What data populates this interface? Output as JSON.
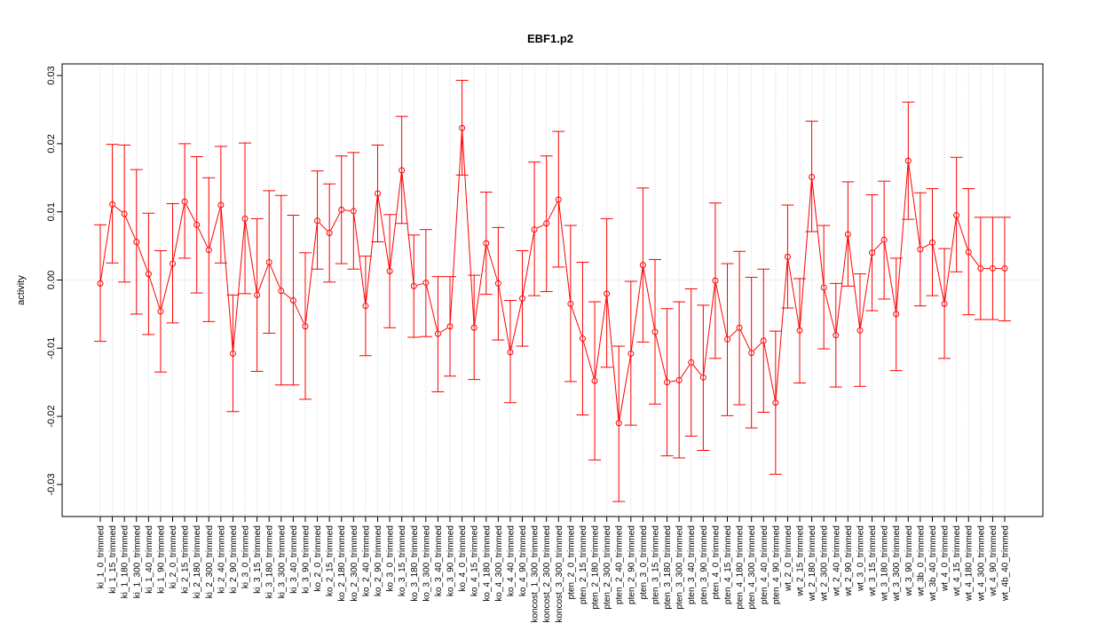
{
  "chart_data": {
    "type": "line",
    "title": "EBF1.p2",
    "xlabel": "",
    "ylabel": "activity",
    "ylim": [
      -0.035,
      0.0315
    ],
    "yticks": [
      -0.03,
      -0.02,
      -0.01,
      0.0,
      0.01,
      0.02,
      0.03
    ],
    "ytick_labels": [
      "-0.03",
      "-0.02",
      "-0.01",
      "0.00",
      "0.01",
      "0.02",
      "0.03"
    ],
    "grid": true,
    "color": "#ff0000",
    "categories": [
      "ki_1_0_trimmed",
      "ki_1_15_trimmed",
      "ki_1_180_trimmed",
      "ki_1_300_trimmed",
      "ki_1_40_trimmed",
      "ki_1_90_trimmed",
      "ki_2_0_trimmed",
      "ki_2_15_trimmed",
      "ki_2_180_trimmed",
      "ki_2_300_trimmed",
      "ki_2_40_trimmed",
      "ki_2_90_trimmed",
      "ki_3_0_trimmed",
      "ki_3_15_trimmed",
      "ki_3_180_trimmed",
      "ki_3_300_trimmed",
      "ki_3_40_trimmed",
      "ki_3_90_trimmed",
      "ko_2_0_trimmed",
      "ko_2_15_trimmed",
      "ko_2_180_trimmed",
      "ko_2_300_trimmed",
      "ko_2_40_trimmed",
      "ko_2_90_trimmed",
      "ko_3_0_trimmed",
      "ko_3_15_trimmed",
      "ko_3_180_trimmed",
      "ko_3_300_trimmed",
      "ko_3_40_trimmed",
      "ko_3_90_trimmed",
      "ko_4_0_trimmed",
      "ko_4_15_trimmed",
      "ko_4_180_trimmed",
      "ko_4_300_trimmed",
      "ko_4_40_trimmed",
      "ko_4_90_trimmed",
      "koncost_1_300_trimmed",
      "koncost_2_300_trimmed",
      "koncost_3_300_trimmed",
      "pten_2_0_trimmed",
      "pten_2_15_trimmed",
      "pten_2_180_trimmed",
      "pten_2_300_trimmed",
      "pten_2_40_trimmed",
      "pten_2_90_trimmed",
      "pten_3_0_trimmed",
      "pten_3_15_trimmed",
      "pten_3_180_trimmed",
      "pten_3_300_trimmed",
      "pten_3_40_trimmed",
      "pten_3_90_trimmed",
      "pten_4_0_trimmed",
      "pten_4_15_trimmed",
      "pten_4_180_trimmed",
      "pten_4_300_trimmed",
      "pten_4_40_trimmed",
      "pten_4_90_trimmed",
      "wt_2_0_trimmed",
      "wt_2_15_trimmed",
      "wt_2_180_trimmed",
      "wt_2_300_trimmed",
      "wt_2_40_trimmed",
      "wt_2_90_trimmed",
      "wt_3_0_trimmed",
      "wt_3_15_trimmed",
      "wt_3_180_trimmed",
      "wt_3_300_trimmed",
      "wt_3_90_trimmed",
      "wt_3b_0_trimmed",
      "wt_3b_40_trimmed",
      "wt_4_0_trimmed",
      "wt_4_15_trimmed",
      "wt_4_180_trimmed",
      "wt_4_300_trimmed",
      "wt_4_90_trimmed",
      "wt_4b_40_trimmed"
    ],
    "values": [
      -0.0005,
      0.0111,
      0.0097,
      0.0056,
      0.0009,
      -0.0046,
      0.0024,
      0.0115,
      0.0081,
      0.0044,
      0.011,
      -0.0108,
      0.009,
      -0.0022,
      0.0026,
      -0.0016,
      -0.003,
      -0.0068,
      0.0087,
      0.0069,
      0.0103,
      0.0101,
      -0.0038,
      0.0127,
      0.0013,
      0.0161,
      -0.0009,
      -0.0004,
      -0.0079,
      -0.0068,
      0.0223,
      -0.007,
      0.0054,
      -0.0005,
      -0.0106,
      -0.0027,
      0.0074,
      0.0083,
      0.0118,
      -0.0035,
      -0.0086,
      -0.0148,
      -0.002,
      -0.021,
      -0.0108,
      0.0022,
      -0.0076,
      -0.015,
      -0.0147,
      -0.0121,
      -0.0143,
      -0.0001,
      -0.0087,
      -0.007,
      -0.0107,
      -0.0089,
      -0.018,
      0.0034,
      -0.0074,
      0.0151,
      -0.0011,
      -0.0081,
      0.0067,
      -0.0074,
      0.004,
      0.0059,
      -0.005,
      0.0175,
      0.0045,
      0.0055,
      -0.0035,
      0.0095,
      0.0041,
      0.0017,
      0.0017,
      0.0017
    ],
    "lower": [
      -0.009,
      0.0025,
      -0.0003,
      -0.005,
      -0.008,
      -0.0135,
      -0.0063,
      0.0032,
      -0.0019,
      -0.0061,
      0.0025,
      -0.0193,
      -0.002,
      -0.0134,
      -0.0078,
      -0.0154,
      -0.0154,
      -0.0175,
      0.0016,
      -0.0003,
      0.0024,
      0.0016,
      -0.0111,
      0.0056,
      -0.007,
      0.0083,
      -0.0084,
      -0.0083,
      -0.0164,
      -0.0141,
      0.0154,
      -0.0146,
      -0.0021,
      -0.0088,
      -0.018,
      -0.0097,
      -0.0023,
      -0.0017,
      0.0019,
      -0.0149,
      -0.0198,
      -0.0264,
      -0.0128,
      -0.0325,
      -0.0213,
      -0.0091,
      -0.0182,
      -0.0258,
      -0.0261,
      -0.0229,
      -0.025,
      -0.0115,
      -0.0199,
      -0.0183,
      -0.0217,
      -0.0194,
      -0.0285,
      -0.0041,
      -0.0151,
      0.0071,
      -0.0101,
      -0.0157,
      -0.0009,
      -0.0156,
      -0.0045,
      -0.0028,
      -0.0133,
      0.0089,
      -0.0038,
      -0.0023,
      -0.0115,
      0.0012,
      -0.0051,
      -0.0058,
      -0.0058,
      -0.006
    ],
    "upper": [
      0.0081,
      0.0199,
      0.0198,
      0.0162,
      0.0098,
      0.0043,
      0.0112,
      0.02,
      0.0181,
      0.015,
      0.0196,
      -0.0022,
      0.0201,
      0.009,
      0.0131,
      0.0124,
      0.0095,
      0.004,
      0.016,
      0.0141,
      0.0182,
      0.0187,
      0.0035,
      0.0198,
      0.0096,
      0.024,
      0.0066,
      0.0074,
      0.0005,
      0.0005,
      0.0293,
      0.0007,
      0.0129,
      0.0077,
      -0.003,
      0.0043,
      0.0173,
      0.0182,
      0.0218,
      0.008,
      0.0026,
      -0.0032,
      0.009,
      -0.0097,
      -0.0002,
      0.0135,
      0.003,
      -0.0042,
      -0.0032,
      -0.0013,
      -0.0037,
      0.0113,
      0.0024,
      0.0042,
      0.0004,
      0.0016,
      -0.0075,
      0.011,
      0.0002,
      0.0233,
      0.008,
      -0.0005,
      0.0144,
      0.0009,
      0.0125,
      0.0145,
      0.0032,
      0.0261,
      0.0128,
      0.0134,
      0.0046,
      0.018,
      0.0134,
      0.0092,
      0.0092,
      0.0092
    ]
  }
}
